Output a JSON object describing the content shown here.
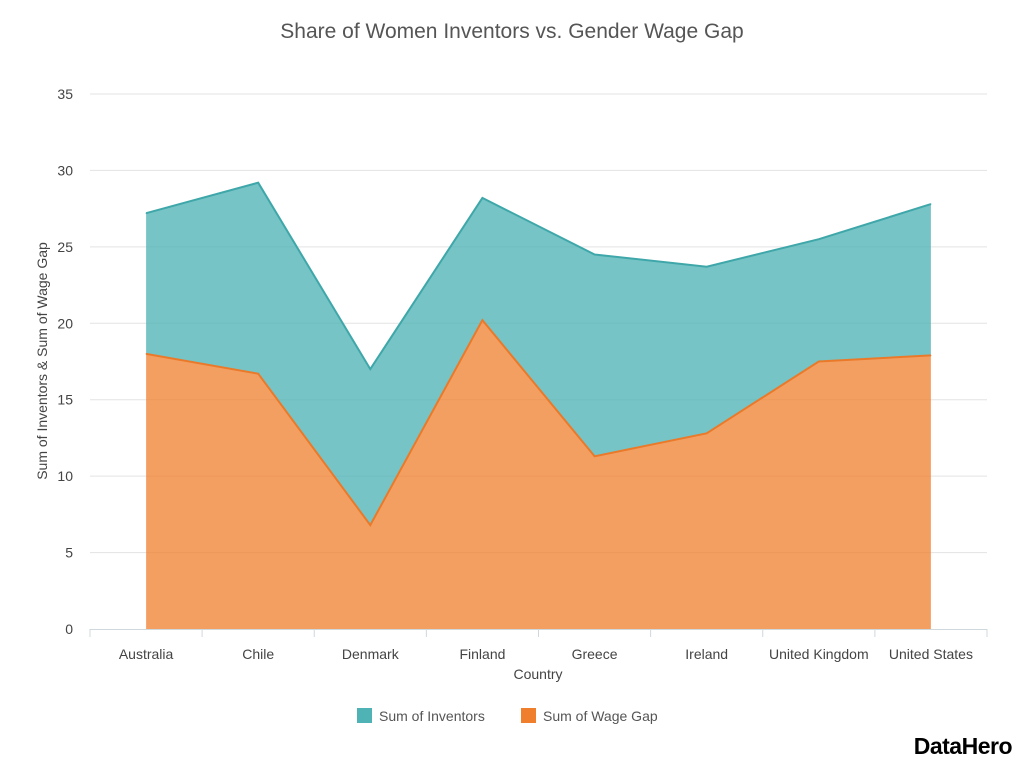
{
  "chart_data": {
    "type": "area",
    "stacked": true,
    "title": "Share of Women Inventors vs. Gender Wage Gap",
    "xlabel": "Country",
    "ylabel": "Sum of Inventors & Sum of Wage Gap",
    "categories": [
      "Australia",
      "Chile",
      "Denmark",
      "Finland",
      "Greece",
      "Ireland",
      "United Kingdom",
      "United States"
    ],
    "series": [
      {
        "name": "Sum of Inventors",
        "color": "#4fb3b5",
        "values": [
          9.2,
          12.5,
          10.2,
          8.0,
          13.2,
          10.9,
          8.0,
          9.9
        ]
      },
      {
        "name": "Sum of Wage Gap",
        "color": "#f07f2d",
        "values": [
          18.0,
          16.7,
          6.8,
          20.2,
          11.3,
          12.8,
          17.5,
          17.9
        ]
      }
    ],
    "ylim": [
      0,
      35
    ],
    "yticks": [
      0,
      5,
      10,
      15,
      20,
      25,
      30,
      35
    ],
    "grid": true,
    "legend_position": "bottom"
  },
  "brand": "DataHero"
}
